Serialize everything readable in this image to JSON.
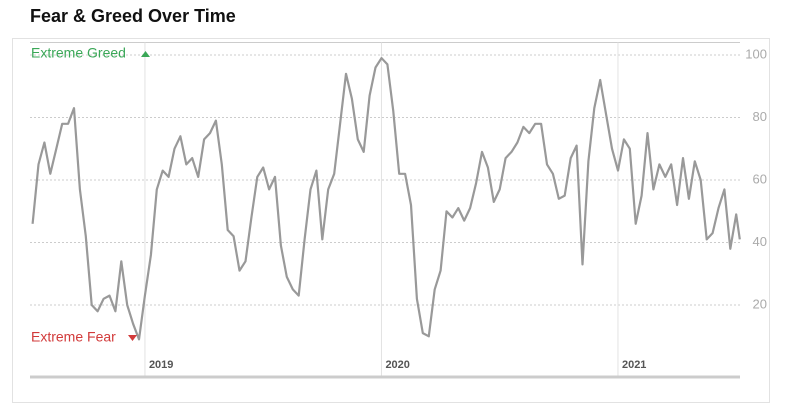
{
  "chart_data": {
    "type": "line",
    "title": "Fear & Greed Over Time",
    "annotations": [
      "Extreme Greed",
      "Extreme Fear"
    ],
    "color": "#999999",
    "grid": true,
    "xlim": [
      2018.514,
      2021.516
    ],
    "xticks": [
      2019,
      2020,
      2021
    ],
    "ylim": [
      0,
      104
    ],
    "yticks": [
      20,
      40,
      60,
      80,
      100
    ],
    "x": [
      2018.525,
      2018.55,
      2018.575,
      2018.6,
      2018.625,
      2018.65,
      2018.675,
      2018.7,
      2018.725,
      2018.75,
      2018.775,
      2018.8,
      2018.825,
      2018.85,
      2018.875,
      2018.9,
      2018.925,
      2018.95,
      2018.975,
      2019.0,
      2019.025,
      2019.05,
      2019.075,
      2019.1,
      2019.125,
      2019.15,
      2019.175,
      2019.2,
      2019.225,
      2019.25,
      2019.275,
      2019.3,
      2019.325,
      2019.35,
      2019.375,
      2019.4,
      2019.425,
      2019.45,
      2019.475,
      2019.5,
      2019.525,
      2019.55,
      2019.575,
      2019.6,
      2019.625,
      2019.65,
      2019.675,
      2019.7,
      2019.725,
      2019.75,
      2019.775,
      2019.8,
      2019.825,
      2019.85,
      2019.875,
      2019.9,
      2019.925,
      2019.95,
      2019.975,
      2020.0,
      2020.025,
      2020.05,
      2020.075,
      2020.1,
      2020.125,
      2020.15,
      2020.175,
      2020.2,
      2020.225,
      2020.25,
      2020.275,
      2020.3,
      2020.325,
      2020.35,
      2020.375,
      2020.4,
      2020.425,
      2020.45,
      2020.475,
      2020.5,
      2020.525,
      2020.55,
      2020.575,
      2020.6,
      2020.625,
      2020.65,
      2020.675,
      2020.7,
      2020.725,
      2020.75,
      2020.775,
      2020.8,
      2020.825,
      2020.85,
      2020.875,
      2020.9,
      2020.925,
      2020.95,
      2020.975,
      2021.0,
      2021.025,
      2021.05,
      2021.075,
      2021.1,
      2021.125,
      2021.15,
      2021.175,
      2021.2,
      2021.225,
      2021.25,
      2021.275,
      2021.3,
      2021.325,
      2021.35,
      2021.375,
      2021.4,
      2021.425,
      2021.45,
      2021.475,
      2021.5,
      2021.515
    ],
    "values": [
      46,
      65,
      72,
      62,
      70,
      78,
      78,
      83,
      57,
      42,
      20,
      18,
      22,
      23,
      18,
      34,
      20,
      14,
      9,
      23,
      36,
      57,
      63,
      61,
      70,
      74,
      65,
      67,
      61,
      73,
      75,
      79,
      65,
      44,
      42,
      31,
      34,
      48,
      61,
      64,
      57,
      61,
      39,
      29,
      25,
      23,
      41,
      57,
      63,
      41,
      57,
      62,
      78,
      94,
      86,
      73,
      69,
      87,
      96,
      99,
      97,
      82,
      62,
      62,
      52,
      22,
      11,
      10,
      25,
      31,
      50,
      48,
      51,
      47,
      51,
      59,
      69,
      64,
      53,
      57,
      67,
      69,
      72,
      77,
      75,
      78,
      78,
      65,
      62,
      54,
      55,
      67,
      71,
      33,
      66,
      83,
      92,
      81,
      70,
      63,
      73,
      70,
      46,
      55,
      75,
      57,
      65,
      61,
      65,
      52,
      67,
      54,
      66,
      60,
      41,
      43,
      51,
      57,
      38,
      49,
      41
    ]
  }
}
